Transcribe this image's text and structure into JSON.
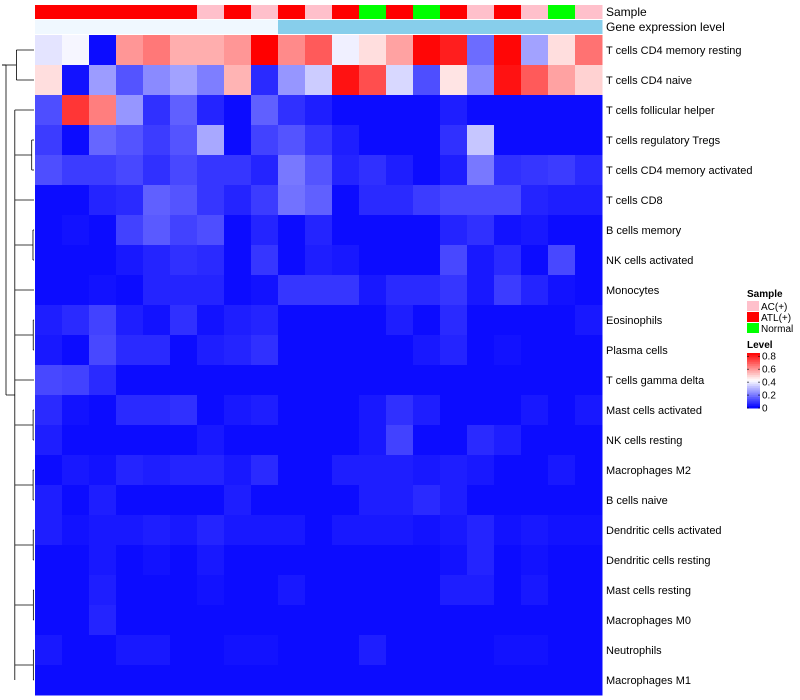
{
  "chart_data": {
    "type": "heatmap",
    "annotation_tracks": [
      {
        "name": "Sample",
        "values": [
          "ATL(+)",
          "ATL(+)",
          "ATL(+)",
          "ATL(+)",
          "ATL(+)",
          "ATL(+)",
          "AC(+)",
          "ATL(+)",
          "AC(+)",
          "ATL(+)",
          "AC(+)",
          "ATL(+)",
          "Normal",
          "ATL(+)",
          "Normal",
          "ATL(+)",
          "AC(+)",
          "ATL(+)",
          "AC(+)",
          "Normal",
          "AC(+)"
        ]
      },
      {
        "name": "Gene expression level",
        "values": [
          "low",
          "low",
          "low",
          "low",
          "low",
          "low",
          "low",
          "low",
          "low",
          "high",
          "high",
          "high",
          "high",
          "high",
          "high",
          "high",
          "high",
          "high",
          "high",
          "high",
          "high"
        ]
      }
    ],
    "sample_legend": {
      "title": "Sample",
      "entries": [
        {
          "label": "AC(+)",
          "color": "#ffc0cb"
        },
        {
          "label": "ATL(+)",
          "color": "#ff0000"
        },
        {
          "label": "Normal",
          "color": "#00ff00"
        }
      ]
    },
    "level_legend": {
      "title": "Level",
      "ticks": [
        "0.8",
        "0.6",
        "0.4",
        "0.2",
        "0"
      ],
      "tick_values": [
        0.8,
        0.6,
        0.4,
        0.2,
        0
      ],
      "range": [
        0,
        0.85
      ],
      "low_color": "#0000ff",
      "mid_color": "#ffffff",
      "high_color": "#ff0000"
    },
    "rows": [
      "T cells CD4 memory resting",
      "T cells CD4 naive",
      "T cells follicular helper",
      "T cells regulatory  Tregs",
      "T cells CD4 memory activated",
      "T cells CD8",
      "B cells memory",
      "NK cells activated",
      "Monocytes",
      "Eosinophils",
      "Plasma cells",
      "T cells gamma delta",
      "Mast cells activated",
      "NK cells resting",
      "Macrophages M2",
      "B cells naive",
      "Dendritic cells activated",
      "Dendritic cells resting",
      "Mast cells resting",
      "Macrophages M0",
      "Neutrophils",
      "Macrophages M1"
    ],
    "values": [
      [
        0.38,
        0.41,
        0.02,
        0.6,
        0.65,
        0.56,
        0.56,
        0.6,
        0.85,
        0.62,
        0.7,
        0.4,
        0.48,
        0.58,
        0.84,
        0.8,
        0.18,
        0.84,
        0.27,
        0.48,
        0.66
      ],
      [
        0.48,
        0.03,
        0.26,
        0.14,
        0.23,
        0.27,
        0.21,
        0.55,
        0.07,
        0.25,
        0.34,
        0.82,
        0.72,
        0.36,
        0.13,
        0.47,
        0.23,
        0.82,
        0.7,
        0.58,
        0.5
      ],
      [
        0.13,
        0.76,
        0.64,
        0.25,
        0.08,
        0.16,
        0.06,
        0.02,
        0.16,
        0.08,
        0.05,
        0.02,
        0.02,
        0.02,
        0.02,
        0.05,
        0.02,
        0.02,
        0.02,
        0.02,
        0.02
      ],
      [
        0.1,
        0.02,
        0.17,
        0.14,
        0.1,
        0.14,
        0.28,
        0.02,
        0.11,
        0.14,
        0.09,
        0.05,
        0.02,
        0.02,
        0.02,
        0.08,
        0.33,
        0.02,
        0.02,
        0.02,
        0.02
      ],
      [
        0.13,
        0.1,
        0.1,
        0.12,
        0.08,
        0.12,
        0.09,
        0.09,
        0.06,
        0.2,
        0.14,
        0.06,
        0.08,
        0.05,
        0.02,
        0.05,
        0.2,
        0.08,
        0.09,
        0.1,
        0.07
      ],
      [
        0.02,
        0.02,
        0.06,
        0.07,
        0.16,
        0.14,
        0.09,
        0.06,
        0.1,
        0.19,
        0.16,
        0.02,
        0.07,
        0.07,
        0.1,
        0.12,
        0.12,
        0.12,
        0.06,
        0.05,
        0.05
      ],
      [
        0.02,
        0.03,
        0.02,
        0.11,
        0.15,
        0.11,
        0.13,
        0.02,
        0.06,
        0.02,
        0.06,
        0.02,
        0.02,
        0.02,
        0.02,
        0.06,
        0.08,
        0.03,
        0.04,
        0.02,
        0.02
      ],
      [
        0.02,
        0.02,
        0.02,
        0.04,
        0.06,
        0.08,
        0.07,
        0.02,
        0.09,
        0.02,
        0.05,
        0.04,
        0.02,
        0.02,
        0.02,
        0.12,
        0.04,
        0.07,
        0.02,
        0.12,
        0.02
      ],
      [
        0.02,
        0.02,
        0.03,
        0.02,
        0.06,
        0.06,
        0.06,
        0.02,
        0.03,
        0.09,
        0.09,
        0.09,
        0.04,
        0.07,
        0.07,
        0.09,
        0.04,
        0.1,
        0.06,
        0.03,
        0.02
      ],
      [
        0.05,
        0.07,
        0.11,
        0.05,
        0.03,
        0.08,
        0.03,
        0.05,
        0.06,
        0.02,
        0.02,
        0.02,
        0.02,
        0.05,
        0.02,
        0.07,
        0.02,
        0.02,
        0.02,
        0.02,
        0.04
      ],
      [
        0.04,
        0.02,
        0.12,
        0.07,
        0.07,
        0.02,
        0.05,
        0.06,
        0.08,
        0.02,
        0.02,
        0.02,
        0.02,
        0.02,
        0.04,
        0.06,
        0.02,
        0.03,
        0.02,
        0.02,
        0.02
      ],
      [
        0.12,
        0.11,
        0.07,
        0.02,
        0.02,
        0.02,
        0.02,
        0.02,
        0.02,
        0.02,
        0.02,
        0.02,
        0.02,
        0.02,
        0.02,
        0.02,
        0.02,
        0.02,
        0.02,
        0.02,
        0.02
      ],
      [
        0.07,
        0.03,
        0.02,
        0.07,
        0.07,
        0.08,
        0.02,
        0.04,
        0.05,
        0.02,
        0.02,
        0.02,
        0.04,
        0.08,
        0.05,
        0.02,
        0.02,
        0.02,
        0.04,
        0.02,
        0.04
      ],
      [
        0.05,
        0.02,
        0.02,
        0.02,
        0.02,
        0.02,
        0.04,
        0.02,
        0.02,
        0.02,
        0.02,
        0.02,
        0.04,
        0.11,
        0.02,
        0.02,
        0.07,
        0.05,
        0.02,
        0.02,
        0.02
      ],
      [
        0.02,
        0.04,
        0.03,
        0.06,
        0.05,
        0.06,
        0.06,
        0.04,
        0.07,
        0.02,
        0.02,
        0.05,
        0.05,
        0.05,
        0.04,
        0.05,
        0.04,
        0.02,
        0.02,
        0.04,
        0.02
      ],
      [
        0.05,
        0.02,
        0.05,
        0.02,
        0.02,
        0.02,
        0.02,
        0.05,
        0.02,
        0.02,
        0.02,
        0.02,
        0.05,
        0.05,
        0.07,
        0.05,
        0.02,
        0.02,
        0.02,
        0.02,
        0.02
      ],
      [
        0.05,
        0.03,
        0.04,
        0.04,
        0.05,
        0.04,
        0.06,
        0.04,
        0.04,
        0.04,
        0.02,
        0.04,
        0.04,
        0.04,
        0.03,
        0.04,
        0.06,
        0.03,
        0.04,
        0.03,
        0.03
      ],
      [
        0.02,
        0.02,
        0.04,
        0.02,
        0.03,
        0.02,
        0.04,
        0.02,
        0.02,
        0.02,
        0.02,
        0.02,
        0.02,
        0.02,
        0.02,
        0.03,
        0.06,
        0.02,
        0.03,
        0.02,
        0.02
      ],
      [
        0.02,
        0.02,
        0.05,
        0.02,
        0.02,
        0.02,
        0.03,
        0.02,
        0.02,
        0.04,
        0.02,
        0.02,
        0.02,
        0.02,
        0.02,
        0.05,
        0.05,
        0.02,
        0.04,
        0.02,
        0.02
      ],
      [
        0.02,
        0.02,
        0.06,
        0.02,
        0.02,
        0.02,
        0.02,
        0.02,
        0.02,
        0.02,
        0.02,
        0.02,
        0.02,
        0.02,
        0.02,
        0.02,
        0.02,
        0.02,
        0.02,
        0.02,
        0.02
      ],
      [
        0.04,
        0.02,
        0.02,
        0.04,
        0.04,
        0.02,
        0.02,
        0.03,
        0.03,
        0.02,
        0.02,
        0.02,
        0.05,
        0.02,
        0.02,
        0.02,
        0.02,
        0.03,
        0.03,
        0.02,
        0.02
      ],
      [
        0.02,
        0.02,
        0.02,
        0.02,
        0.02,
        0.02,
        0.02,
        0.02,
        0.02,
        0.02,
        0.02,
        0.02,
        0.02,
        0.02,
        0.02,
        0.02,
        0.02,
        0.02,
        0.02,
        0.02,
        0.02
      ]
    ],
    "row_dendrogram": {
      "note": "hierarchical clustering of rows; root splits {row0,row1} from rest",
      "merges": [
        {
          "a": 0,
          "b": 1,
          "height": 0.55
        },
        {
          "a": 3,
          "b": 4,
          "height": 0.18
        },
        {
          "a": 6,
          "b": 7,
          "height": 0.08
        },
        {
          "a": 9,
          "b": 10,
          "height": 0.06
        },
        {
          "a": 12,
          "b": 13,
          "height": 0.07
        },
        {
          "a": 14,
          "b": 15,
          "height": 0.07
        },
        {
          "a": 16,
          "b": 17,
          "height": 0.06
        },
        {
          "a": 18,
          "b": 19,
          "height": 0.05
        },
        {
          "a": 20,
          "b": 21,
          "height": 0.05
        }
      ]
    },
    "sample_colors": {
      "AC(+)": "#ffc0cb",
      "ATL(+)": "#ff0000",
      "Normal": "#00ff00"
    },
    "expression_colors": {
      "low": "#f0f8ff",
      "high": "#87ceeb"
    }
  }
}
